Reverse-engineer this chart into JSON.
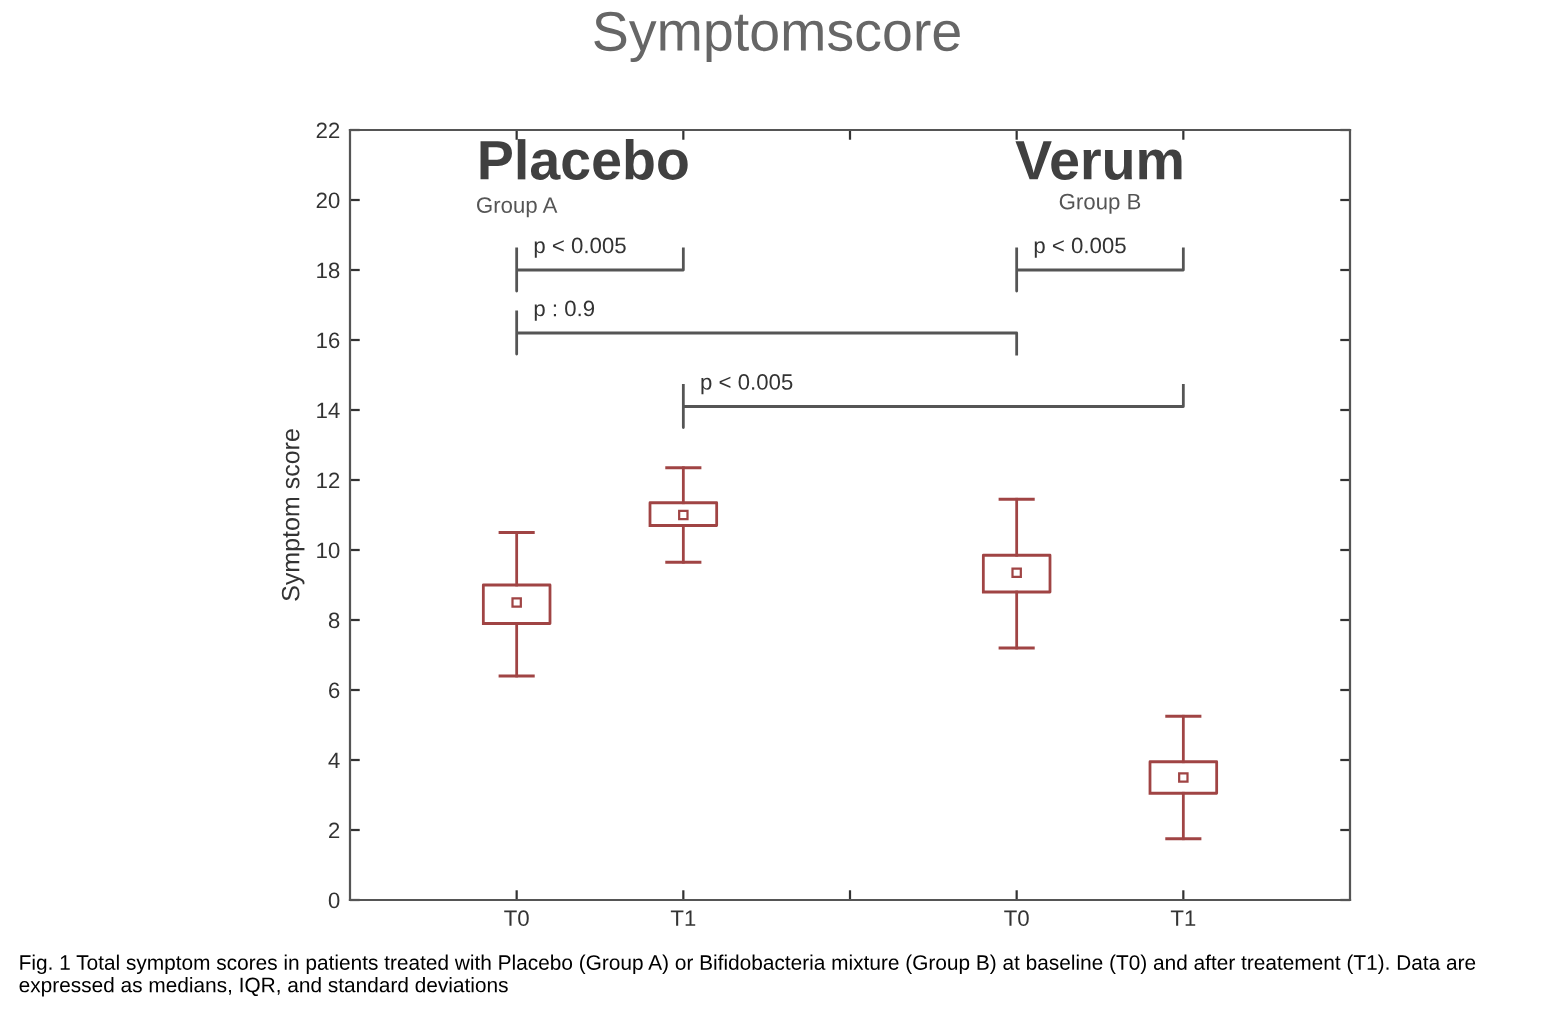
{
  "chart_data": {
    "type": "box",
    "title": "Symptomscore",
    "ylabel": "Symptom score",
    "categories": [
      "T0",
      "T1",
      null,
      "T0",
      "T1"
    ],
    "boxes": [
      {
        "low": 6.4,
        "q1": 7.9,
        "median": 8.5,
        "q3": 9.0,
        "high": 10.5
      },
      {
        "low": 9.65,
        "q1": 10.7,
        "median": 11.0,
        "q3": 11.35,
        "high": 12.35
      },
      null,
      {
        "low": 7.2,
        "q1": 8.8,
        "median": 9.35,
        "q3": 9.85,
        "high": 11.45
      },
      {
        "low": 1.75,
        "q1": 3.05,
        "median": 3.5,
        "q3": 3.95,
        "high": 5.25
      }
    ],
    "color": "#a04444",
    "marker": "square",
    "ylim": [
      0,
      22
    ],
    "yticks": [
      0,
      2,
      4,
      6,
      8,
      10,
      12,
      14,
      16,
      18,
      20,
      22
    ],
    "grid": false,
    "annotations": [
      "Placebo",
      "Group A",
      "Verum",
      "Group B",
      "p < 0.005",
      "p : 0.9",
      "p < 0.005",
      "p < 0.005",
      "Fig. 1 Total symptom scores in patients treated with Placebo (Group A) or Bifidobacteria mixture (Group B) at baseline (T0) and after treatement (T1). Data are expressed as medians, IQR, and standard deviations"
    ]
  }
}
